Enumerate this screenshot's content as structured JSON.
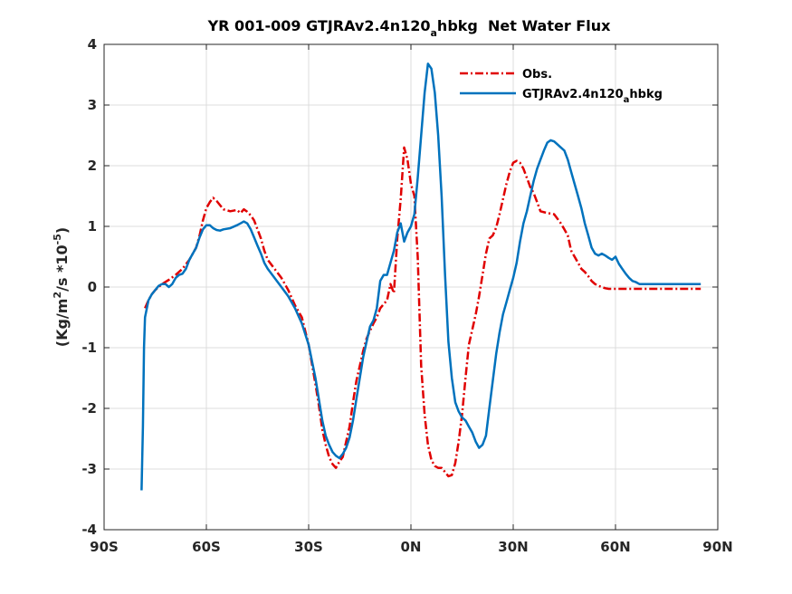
{
  "chart_data": {
    "type": "line",
    "title": {
      "prefix": "YR 001-009 GTJRAv2.4n120",
      "subscript": "a",
      "suffix": "hbkg  Net Water Flux"
    },
    "ylabel": {
      "part1": "(Kg/m",
      "sup1": "2",
      "part2": "/s *10",
      "sup2": "-5",
      "part3": ")"
    },
    "xlim": [
      -90,
      90
    ],
    "ylim": [
      -4,
      4
    ],
    "grid": true,
    "legend_position": "top-right",
    "xticks": [
      {
        "value": -90,
        "label": "90S"
      },
      {
        "value": -60,
        "label": "60S"
      },
      {
        "value": -30,
        "label": "30S"
      },
      {
        "value": 0,
        "label": "0N"
      },
      {
        "value": 30,
        "label": "30N"
      },
      {
        "value": 60,
        "label": "60N"
      },
      {
        "value": 90,
        "label": "90N"
      }
    ],
    "yticks": [
      {
        "value": 4,
        "label": "4"
      },
      {
        "value": 3,
        "label": "3"
      },
      {
        "value": 2,
        "label": "2"
      },
      {
        "value": 1,
        "label": "1"
      },
      {
        "value": 0,
        "label": "0"
      },
      {
        "value": -1,
        "label": "-1"
      },
      {
        "value": -2,
        "label": "-2"
      },
      {
        "value": -3,
        "label": "-3"
      },
      {
        "value": -4,
        "label": "-4"
      }
    ],
    "series": [
      {
        "name": "Obs.",
        "color": "#e00000",
        "dash": "dashdot",
        "x": [
          -78,
          -77,
          -76,
          -75,
          -73,
          -71,
          -69,
          -67,
          -65,
          -63,
          -62,
          -61,
          -60,
          -59,
          -58,
          -57,
          -55,
          -53,
          -51,
          -50,
          -49,
          -48,
          -47,
          -46,
          -45,
          -44,
          -43,
          -42,
          -40,
          -38,
          -36,
          -34,
          -32,
          -30,
          -28,
          -27,
          -26,
          -25,
          -24,
          -23,
          -22,
          -21,
          -20,
          -19,
          -18,
          -17,
          -16,
          -15,
          -14,
          -13,
          -12,
          -11,
          -10,
          -9,
          -8,
          -7,
          -6,
          -5,
          -4,
          -3,
          -2,
          -1,
          0,
          1,
          2,
          3,
          4,
          5,
          6,
          7,
          8,
          9,
          10,
          11,
          12,
          13,
          14,
          15,
          16,
          17,
          18,
          19,
          20,
          21,
          22,
          23,
          24,
          25,
          26,
          27,
          28,
          29,
          30,
          31,
          32,
          33,
          34,
          35,
          36,
          37,
          38,
          40,
          42,
          44,
          45,
          46,
          47,
          48,
          49,
          50,
          51,
          52,
          53,
          54,
          55,
          56,
          57,
          58,
          59,
          60,
          62,
          64,
          66,
          68,
          70,
          72,
          74,
          76,
          78,
          80,
          82,
          85
        ],
        "y": [
          -0.35,
          -0.22,
          -0.12,
          -0.05,
          0.05,
          0.12,
          0.2,
          0.3,
          0.45,
          0.65,
          0.85,
          1.1,
          1.3,
          1.4,
          1.47,
          1.42,
          1.28,
          1.25,
          1.27,
          1.22,
          1.28,
          1.24,
          1.18,
          1.1,
          0.95,
          0.8,
          0.6,
          0.45,
          0.3,
          0.15,
          -0.05,
          -0.3,
          -0.5,
          -0.95,
          -1.6,
          -1.95,
          -2.35,
          -2.6,
          -2.8,
          -2.92,
          -2.98,
          -2.88,
          -2.8,
          -2.55,
          -2.3,
          -1.9,
          -1.55,
          -1.3,
          -1.05,
          -0.85,
          -0.72,
          -0.6,
          -0.5,
          -0.35,
          -0.28,
          -0.22,
          0.05,
          -0.1,
          0.8,
          1.45,
          2.3,
          2.1,
          1.7,
          1.5,
          0.5,
          -1.3,
          -2.1,
          -2.6,
          -2.85,
          -2.95,
          -2.98,
          -2.98,
          -3.05,
          -3.12,
          -3.1,
          -2.9,
          -2.55,
          -2.1,
          -1.5,
          -0.95,
          -0.7,
          -0.45,
          -0.15,
          0.2,
          0.55,
          0.8,
          0.85,
          0.98,
          1.2,
          1.45,
          1.7,
          1.9,
          2.05,
          2.08,
          2.05,
          1.95,
          1.8,
          1.65,
          1.55,
          1.4,
          1.25,
          1.22,
          1.2,
          1.05,
          0.95,
          0.85,
          0.6,
          0.5,
          0.4,
          0.3,
          0.25,
          0.18,
          0.1,
          0.05,
          0.02,
          0.0,
          -0.02,
          -0.03,
          -0.03,
          -0.03,
          -0.03,
          -0.03,
          -0.03,
          -0.03,
          -0.03,
          -0.03,
          -0.03,
          -0.03,
          -0.03,
          -0.03,
          -0.03,
          -0.03
        ]
      },
      {
        "name": "GTJRAv2.4n120",
        "name_subscript": "a",
        "name_suffix": "hbkg",
        "color": "#0072bd",
        "dash": "solid",
        "x": [
          -79,
          -78.6,
          -78.3,
          -78,
          -77,
          -76,
          -75,
          -74,
          -73,
          -72,
          -71,
          -70,
          -69,
          -68,
          -67,
          -66,
          -65,
          -63,
          -62,
          -61,
          -60,
          -59,
          -58,
          -57,
          -56,
          -55,
          -53,
          -51,
          -50,
          -49,
          -48,
          -47,
          -46,
          -45,
          -44,
          -43,
          -42,
          -40,
          -38,
          -36,
          -34,
          -32,
          -30,
          -28,
          -27,
          -26,
          -25,
          -24,
          -23,
          -22,
          -21,
          -20,
          -19,
          -18,
          -17,
          -16,
          -15,
          -14,
          -13,
          -12,
          -11,
          -10,
          -9,
          -8,
          -7,
          -6,
          -5,
          -4,
          -3,
          -2,
          -1,
          0,
          1,
          2,
          3,
          4,
          5,
          6,
          7,
          8,
          9,
          10,
          11,
          12,
          13,
          14,
          15,
          16,
          17,
          18,
          19,
          20,
          21,
          22,
          23,
          24,
          25,
          26,
          27,
          28,
          29,
          30,
          31,
          32,
          33,
          34,
          35,
          36,
          37,
          38,
          39,
          40,
          41,
          42,
          43,
          44,
          45,
          46,
          47,
          48,
          49,
          50,
          51,
          52,
          53,
          54,
          55,
          56,
          57,
          58,
          59,
          60,
          61,
          62,
          63,
          64,
          65,
          66,
          67,
          68,
          69,
          70,
          71,
          72,
          74,
          76,
          78,
          80,
          82,
          85
        ],
        "y": [
          -3.35,
          -2.3,
          -1.0,
          -0.5,
          -0.22,
          -0.12,
          -0.05,
          0.02,
          0.05,
          0.05,
          0.0,
          0.05,
          0.15,
          0.2,
          0.22,
          0.3,
          0.45,
          0.65,
          0.82,
          0.95,
          1.02,
          1.02,
          0.97,
          0.94,
          0.93,
          0.95,
          0.97,
          1.02,
          1.05,
          1.08,
          1.05,
          0.95,
          0.82,
          0.68,
          0.55,
          0.4,
          0.3,
          0.15,
          0.0,
          -0.15,
          -0.35,
          -0.6,
          -0.95,
          -1.5,
          -1.85,
          -2.2,
          -2.45,
          -2.6,
          -2.72,
          -2.78,
          -2.82,
          -2.75,
          -2.65,
          -2.48,
          -2.2,
          -1.85,
          -1.5,
          -1.15,
          -0.9,
          -0.65,
          -0.55,
          -0.35,
          0.1,
          0.2,
          0.2,
          0.4,
          0.6,
          0.9,
          1.05,
          0.75,
          0.9,
          1.0,
          1.2,
          1.8,
          2.5,
          3.2,
          3.68,
          3.6,
          3.2,
          2.5,
          1.5,
          0.2,
          -0.9,
          -1.5,
          -1.9,
          -2.05,
          -2.15,
          -2.2,
          -2.3,
          -2.4,
          -2.55,
          -2.65,
          -2.6,
          -2.45,
          -2.0,
          -1.55,
          -1.1,
          -0.75,
          -0.45,
          -0.25,
          -0.05,
          0.15,
          0.4,
          0.75,
          1.05,
          1.25,
          1.5,
          1.75,
          1.95,
          2.1,
          2.25,
          2.38,
          2.42,
          2.4,
          2.35,
          2.3,
          2.25,
          2.1,
          1.9,
          1.7,
          1.5,
          1.3,
          1.05,
          0.85,
          0.65,
          0.55,
          0.52,
          0.55,
          0.52,
          0.48,
          0.45,
          0.5,
          0.38,
          0.3,
          0.22,
          0.15,
          0.1,
          0.08,
          0.05,
          0.05,
          0.05,
          0.05,
          0.05,
          0.05,
          0.05,
          0.05,
          0.05,
          0.05,
          0.05,
          0.05
        ]
      }
    ]
  }
}
